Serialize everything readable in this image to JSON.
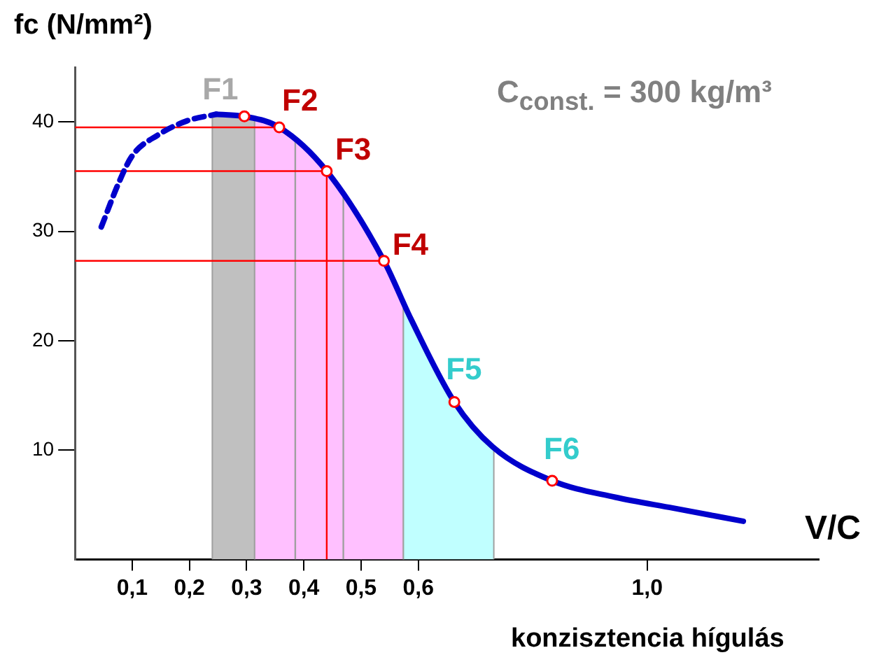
{
  "chart_data": {
    "type": "line",
    "ylabel": "fc (N/mm²)",
    "xlabel": "V/C",
    "xlim": [
      0,
      1.3
    ],
    "ylim": [
      0,
      45
    ],
    "xticks": [
      {
        "value": 0.1,
        "label": "0,1"
      },
      {
        "value": 0.2,
        "label": "0,2"
      },
      {
        "value": 0.3,
        "label": "0,3"
      },
      {
        "value": 0.4,
        "label": "0,4"
      },
      {
        "value": 0.5,
        "label": "0,5"
      },
      {
        "value": 0.6,
        "label": "0,6"
      },
      {
        "value": 1.0,
        "label": "1,0"
      }
    ],
    "yticks": [
      10,
      20,
      30,
      40
    ],
    "grid": false,
    "legend": false,
    "series": [
      {
        "type": "line",
        "line_style": "dashed",
        "marker": "none",
        "color": "#0000cc",
        "x": [
          0.046,
          0.077,
          0.1,
          0.145,
          0.196,
          0.247
        ],
        "values": [
          30.4,
          34.5,
          36.9,
          38.8,
          40.1,
          40.7
        ]
      },
      {
        "type": "line",
        "line_style": "solid",
        "marker": "none",
        "color": "#0000cc",
        "x": [
          0.247,
          0.296,
          0.357,
          0.44,
          0.54,
          0.587,
          0.663,
          0.73,
          0.834,
          0.944,
          1.046,
          1.168
        ],
        "values": [
          40.7,
          40.5,
          39.5,
          35.5,
          27.3,
          22,
          14.4,
          10.3,
          7.2,
          5.7,
          4.7,
          3.5
        ]
      },
      {
        "type": "scatter",
        "marker": "circle",
        "color": "#ff0000",
        "x": [
          0.296,
          0.357,
          0.44,
          0.54,
          0.663,
          0.834
        ],
        "values": [
          40.5,
          39.5,
          35.5,
          27.3,
          14.4,
          7.2
        ]
      }
    ],
    "bands": [
      {
        "axis": "x",
        "from": 0.24,
        "to": 0.314,
        "color": "#c0c0c0"
      },
      {
        "axis": "x",
        "from": 0.314,
        "to": 0.574,
        "color": "#ffc0ff"
      },
      {
        "axis": "x",
        "from": 0.574,
        "to": 0.732,
        "color": "#c0ffff"
      }
    ],
    "ref_lines": [
      {
        "axis": "y",
        "value": 39.5,
        "color": "#ff0000"
      },
      {
        "axis": "y",
        "value": 35.5,
        "color": "#ff0000"
      },
      {
        "axis": "y",
        "value": 27.3,
        "color": "#ff0000"
      },
      {
        "axis": "x",
        "value": 0.44,
        "color": "#ff0000"
      },
      {
        "axis": "x",
        "value": 0.385,
        "color": "#a0a0a0"
      },
      {
        "axis": "x",
        "value": 0.469,
        "color": "#a0a0a0"
      }
    ],
    "annotations": [
      {
        "text": "F1",
        "x": 0.296,
        "y": 40.5
      },
      {
        "text": "F2",
        "x": 0.357,
        "y": 39.5
      },
      {
        "text": "F3",
        "x": 0.44,
        "y": 35.5
      },
      {
        "text": "F4",
        "x": 0.54,
        "y": 27.3
      },
      {
        "text": "F5",
        "x": 0.663,
        "y": 14.4
      },
      {
        "text": "F6",
        "x": 0.834,
        "y": 7.2
      },
      "C$_{const.}$ = 300 kg/m³",
      "konzisztencia hígulás"
    ]
  }
}
